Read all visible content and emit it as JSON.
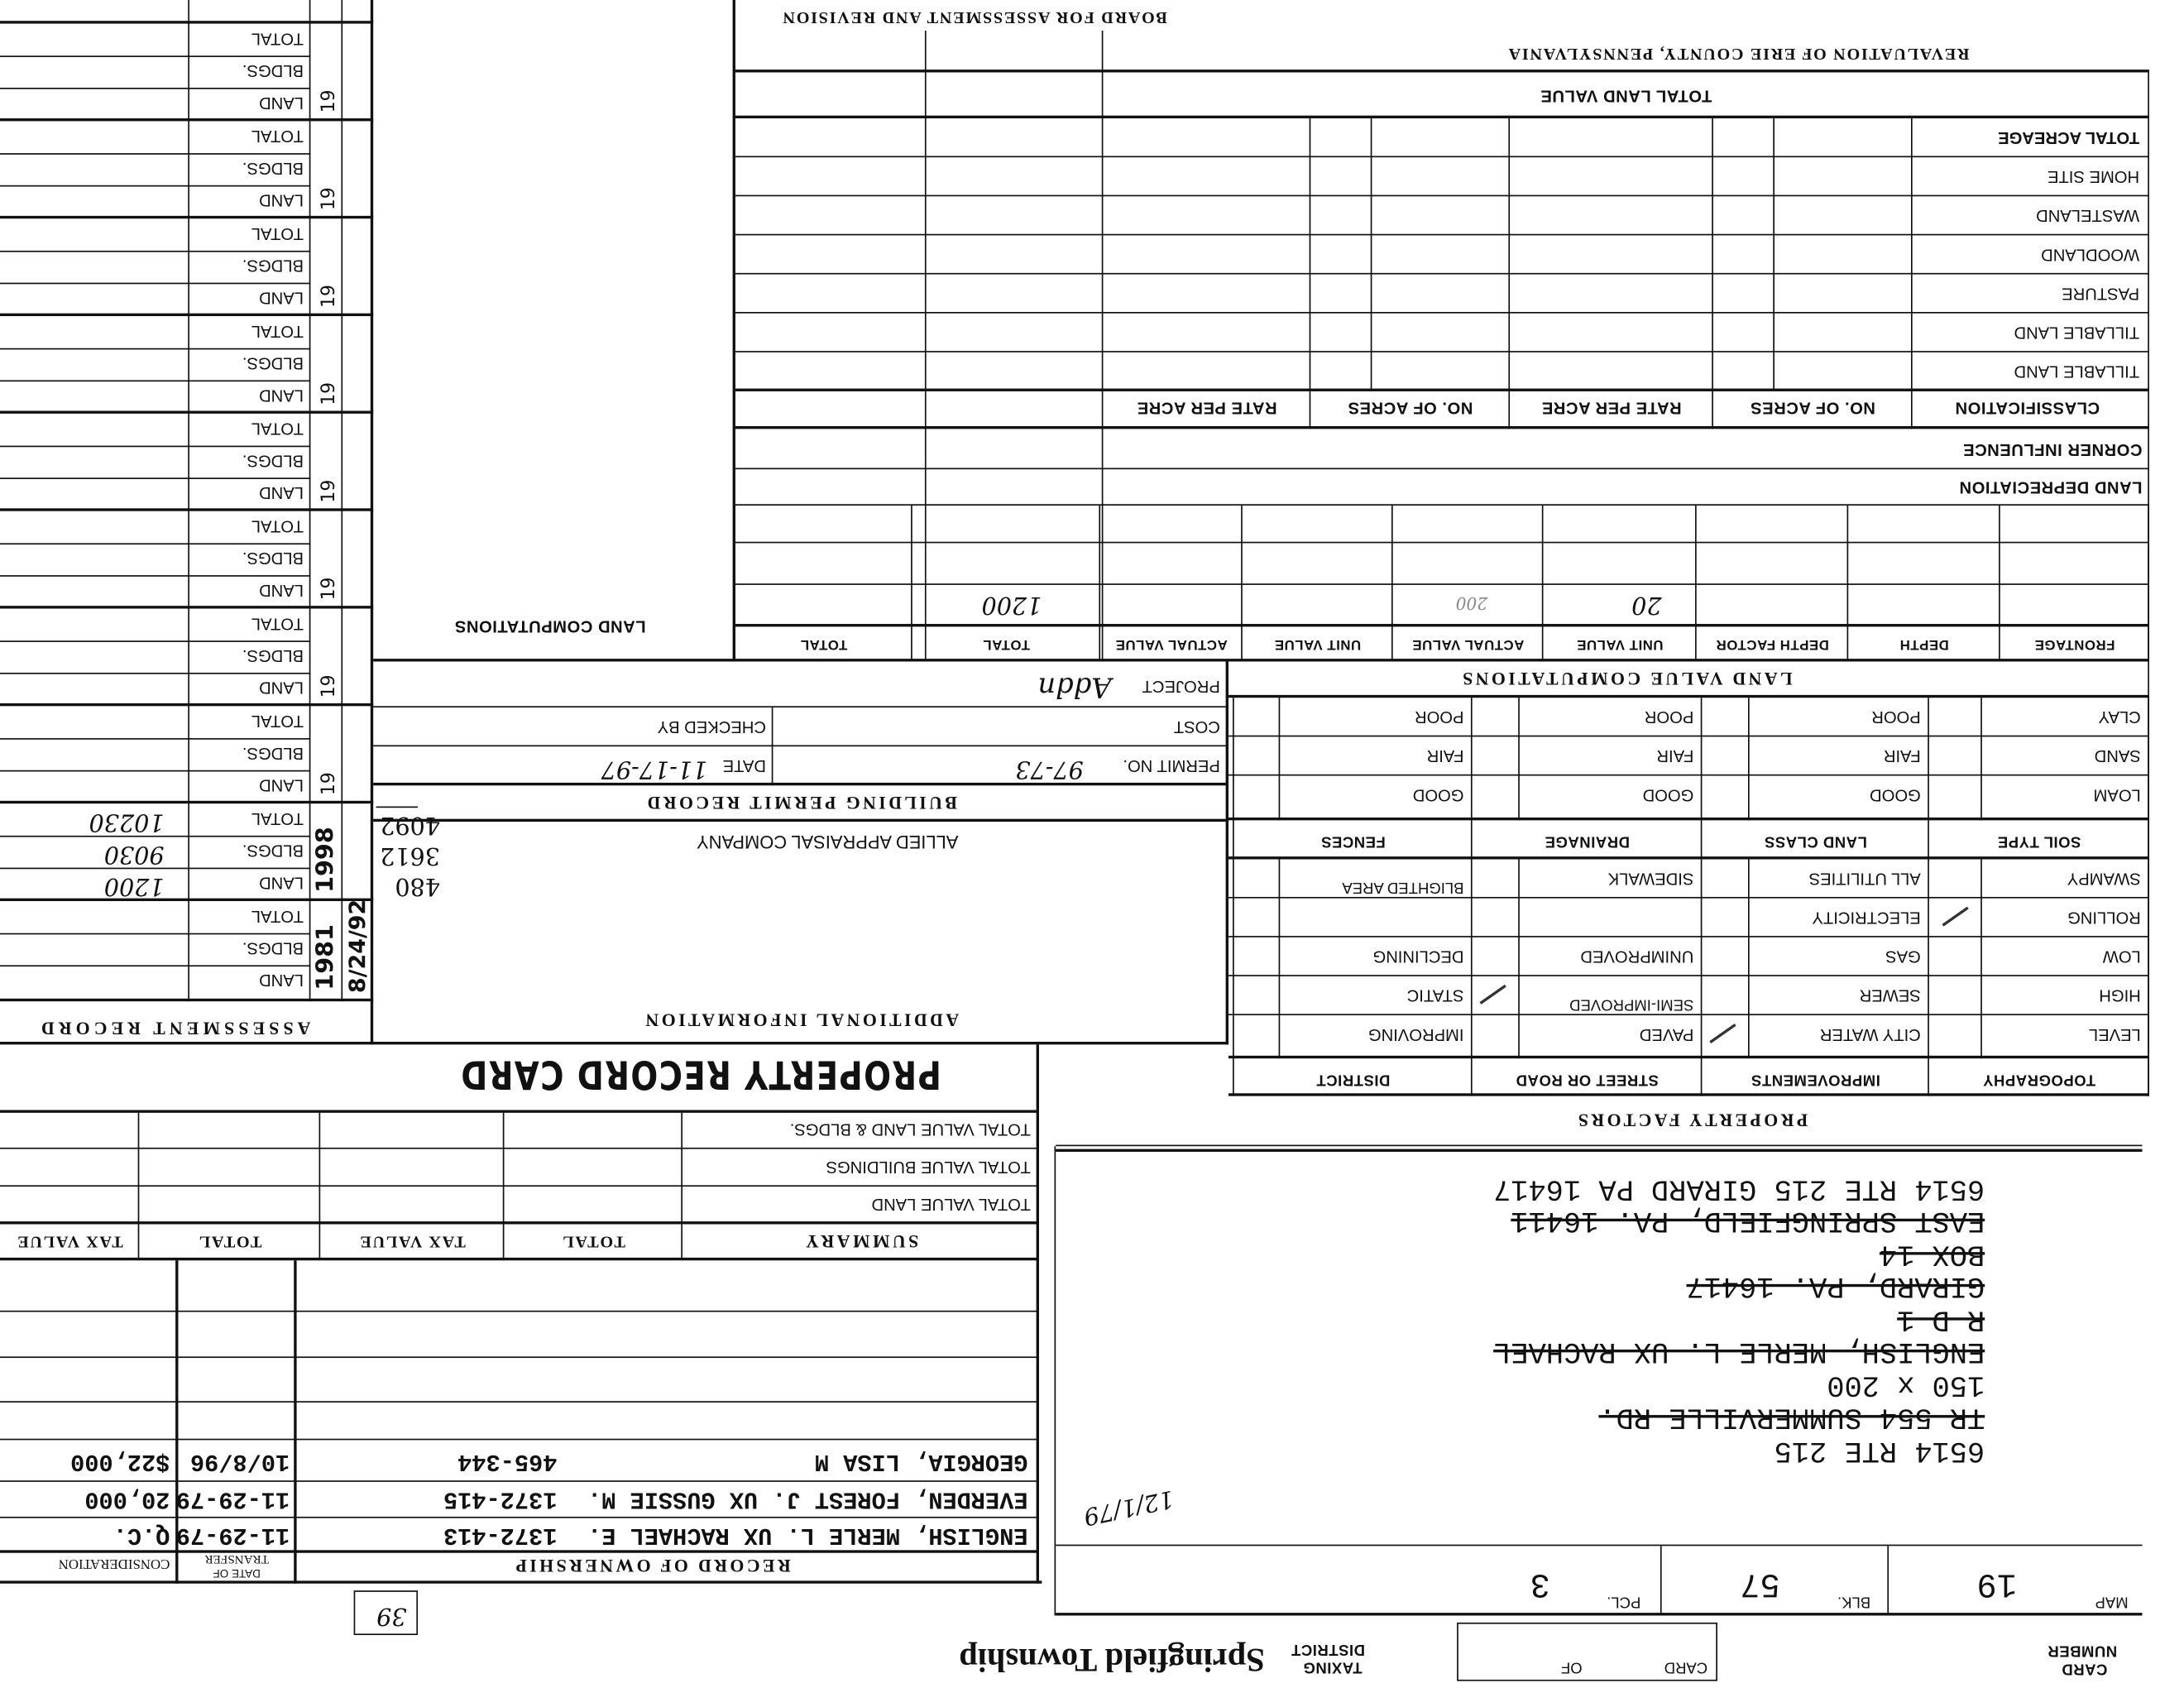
{
  "header": {
    "card_label": "CARD",
    "number_label": "NUMBER",
    "card_of": {
      "card": "CARD",
      "of": "OF"
    },
    "taxing": "TAXING",
    "district": "DISTRICT",
    "township": "Springfield Township",
    "box_number": "39"
  },
  "parcel": {
    "map_label": "MAP",
    "map": "19",
    "blk_label": "BLK.",
    "blk": "57",
    "pcl_label": "PCL.",
    "pcl": "3"
  },
  "handwritten_date": "12/1/79",
  "address_lines": [
    {
      "text": "6514 RTE 215",
      "struck": false
    },
    {
      "text": "TR 554 SUMMERVILLE RD.",
      "struck": true
    },
    {
      "text": "150 x 200",
      "struck": false
    },
    {
      "text": "ENGLISH, MERLE L. UX RACHAEL",
      "struck": true
    },
    {
      "text": "R D 1",
      "struck": true
    },
    {
      "text": "GIRARD, PA. 16417",
      "struck": true
    },
    {
      "text": "BOX 14",
      "struck": true
    },
    {
      "text": "EAST SPRINGFIELD, PA. 16411",
      "struck": true
    },
    {
      "text": "6514 RTE 215 GIRARD PA 16417",
      "struck": false
    }
  ],
  "ownership": {
    "title": "RECORD OF OWNERSHIP",
    "date_of": "DATE OF",
    "transfer": "TRANSFER",
    "consideration": "CONSIDERATION",
    "rows": [
      {
        "name": "ENGLISH, MERLE L. UX RACHAEL E.",
        "deed": "1372-413",
        "date": "11-29-79",
        "consideration": "Q.C."
      },
      {
        "name": "EVERDEN, FOREST J. UX GUSSIE M.",
        "deed": "1372-415",
        "date": "11-29-79",
        "consideration": "20,000"
      },
      {
        "name": "GEORGIA, LISA M",
        "deed": "465-344",
        "date": "10/8/96",
        "consideration": "$22,000"
      }
    ]
  },
  "summary": {
    "title": "SUMMARY",
    "columns": [
      "TOTAL",
      "TAX VALUE",
      "TOTAL",
      "TAX VALUE"
    ],
    "rows": [
      "TOTAL VALUE LAND",
      "TOTAL VALUE BUILDINGS",
      "TOTAL VALUE LAND & BLDGS."
    ]
  },
  "card_title": "PROPERTY RECORD CARD",
  "property_factors": {
    "title": "PROPERTY FACTORS",
    "headers": [
      "TOPOGRAPHY",
      "IMPROVEMENTS",
      "STREET OR ROAD",
      "DISTRICT"
    ],
    "rows": [
      [
        {
          "label": "LEVEL"
        },
        {
          "label": "CITY WATER",
          "checked": true
        },
        {
          "label": "PAVED"
        },
        {
          "label": "IMPROVING"
        }
      ],
      [
        {
          "label": "HIGH"
        },
        {
          "label": "SEWER"
        },
        {
          "label": "SEMI-IMPROVED",
          "checked": true
        },
        {
          "label": "STATIC"
        }
      ],
      [
        {
          "label": "LOW"
        },
        {
          "label": "GAS"
        },
        {
          "label": "UNIMPROVED"
        },
        {
          "label": "DECLINING"
        }
      ],
      [
        {
          "label": "ROLLING",
          "checked": true
        },
        {
          "label": "ELECTRICITY"
        },
        {
          "label": ""
        },
        {
          "label": ""
        }
      ],
      [
        {
          "label": "SWAMPY"
        },
        {
          "label": "ALL UTILITIES"
        },
        {
          "label": "SIDEWALK"
        },
        {
          "label": "BLIGHTED AREA"
        }
      ]
    ],
    "soil_headers": [
      "SOIL TYPE",
      "LAND CLASS",
      "DRAINAGE",
      "FENCES"
    ],
    "soil_rows": [
      [
        "LOAM",
        "GOOD",
        "GOOD",
        "GOOD"
      ],
      [
        "SAND",
        "FAIR",
        "FAIR",
        "FAIR"
      ],
      [
        "CLAY",
        "POOR",
        "POOR",
        "POOR"
      ]
    ]
  },
  "land_value": {
    "title": "LAND VALUE COMPUTATIONS",
    "headers": [
      "FRONTAGE",
      "DEPTH",
      "DEPTH FACTOR",
      "UNIT VALUE",
      "ACTUAL VALUE",
      "UNIT VALUE",
      "ACTUAL VALUE",
      "TOTAL",
      "TOTAL"
    ],
    "entries": {
      "unit_value": "20",
      "actual_value": "200",
      "total": "1200"
    }
  },
  "land_classification": {
    "depreciation": "LAND DEPRECIATION",
    "corner": "CORNER INFLUENCE",
    "header": "CLASSIFICATION",
    "columns": [
      "NO. OF ACRES",
      "RATE PER ACRE",
      "NO. OF ACRES",
      "RATE PER ACRE"
    ],
    "rows": [
      "TILLABLE LAND",
      "TILLABLE LAND",
      "PASTURE",
      "WOODLAND",
      "WASTELAND",
      "HOME SITE",
      "TOTAL ACREAGE"
    ],
    "total_land_value": "TOTAL LAND VALUE"
  },
  "revaluation": "REVALUATION OF ERIE COUNTY, PENNSYLVANIA",
  "board": "BOARD FOR ASSESSMENT AND REVISION",
  "additional": {
    "title": "ADDITIONAL INFORMATION",
    "company": "ALLIED APPRAISAL COMPANY",
    "figures": [
      "480",
      "3612",
      "4092"
    ]
  },
  "permit": {
    "title": "BUILDING PERMIT RECORD",
    "permit_label": "PERMIT NO.",
    "permit_no": "97-73",
    "date_label": "DATE",
    "date": "11-17-97",
    "cost_label": "COST",
    "checked_label": "CHECKED BY",
    "project_label": "PROJECT",
    "project": "Addn"
  },
  "land_computations": "LAND COMPUTATIONS",
  "assessment": {
    "title": "ASSESSMENT RECORD",
    "labels": [
      "LAND",
      "BLDGS.",
      "TOTAL"
    ],
    "blocks": [
      {
        "year": "1981",
        "stamp": "8/24/92"
      },
      {
        "year": "1998",
        "land": "1200",
        "bldgs": "9030",
        "total": "10230"
      },
      {
        "year": "19"
      },
      {
        "year": "19"
      },
      {
        "year": "19"
      },
      {
        "year": "19"
      },
      {
        "year": "19"
      },
      {
        "year": "19"
      },
      {
        "year": "19"
      },
      {
        "year": "19"
      }
    ]
  }
}
